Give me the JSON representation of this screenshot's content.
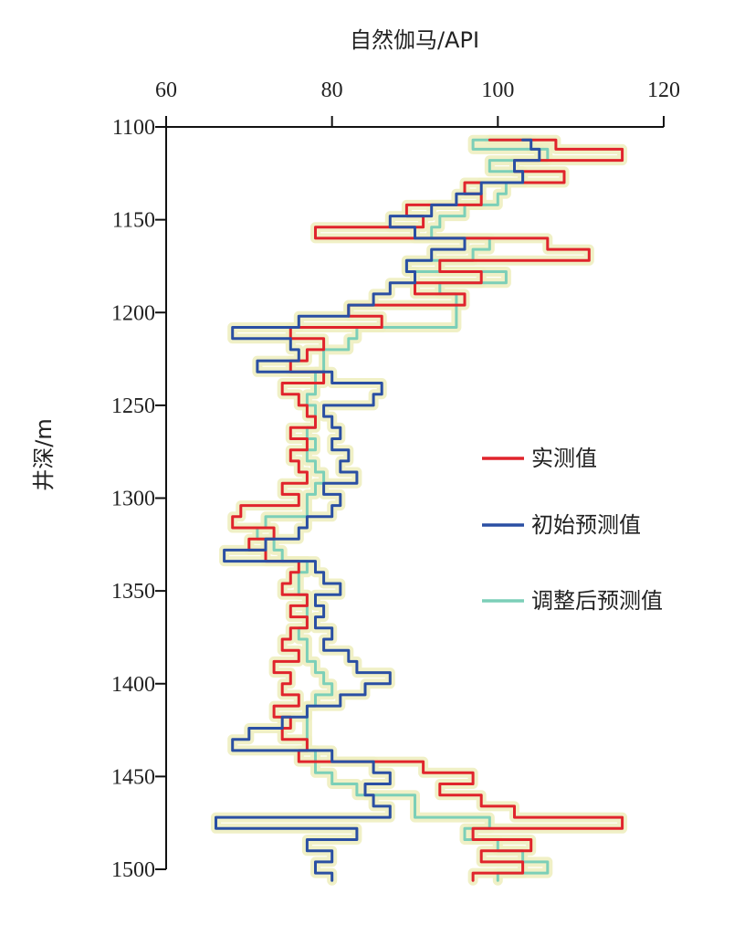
{
  "chart_data": {
    "type": "line",
    "orientation": "vertical-depth",
    "xlabel": "自然伽马/API",
    "ylabel": "井深/m",
    "xlim": [
      60,
      120
    ],
    "ylim": [
      1100,
      1500
    ],
    "x_axis_position": "top",
    "y_inverted": true,
    "grid": false,
    "legend_position": "right-middle",
    "x_ticks": [
      "60",
      "80",
      "100",
      "120"
    ],
    "y_ticks": [
      "1100",
      "1150",
      "1200",
      "1250",
      "1300",
      "1350",
      "1400",
      "1450",
      "1500"
    ],
    "colors": {
      "实测值": "#e0242c",
      "初始预测值": "#2a4fa3",
      "调整后预测值": "#7ccfb8",
      "halo": "#eeeec0"
    },
    "series": [
      {
        "name": "实测值",
        "depth": [
          1107,
          1112,
          1118,
          1124,
          1130,
          1136,
          1142,
          1148,
          1154,
          1160,
          1166,
          1172,
          1178,
          1184,
          1190,
          1196,
          1202,
          1208,
          1214,
          1220,
          1226,
          1232,
          1238,
          1244,
          1250,
          1256,
          1262,
          1268,
          1274,
          1280,
          1286,
          1292,
          1298,
          1304,
          1310,
          1316,
          1322,
          1328,
          1334,
          1340,
          1346,
          1352,
          1358,
          1364,
          1370,
          1376,
          1382,
          1388,
          1394,
          1400,
          1406,
          1412,
          1418,
          1424,
          1430,
          1436,
          1442,
          1448,
          1454,
          1460,
          1466,
          1472,
          1478,
          1484,
          1490,
          1496,
          1502,
          1506
        ],
        "values": [
          99,
          107,
          115,
          102,
          108,
          96,
          98,
          89,
          91,
          78,
          106,
          111,
          93,
          98,
          90,
          96,
          82,
          86,
          75,
          79,
          77,
          75,
          79,
          74,
          76,
          77,
          78,
          75,
          77,
          75,
          76,
          77,
          74,
          76,
          69,
          68,
          73,
          70,
          72,
          76,
          75,
          74,
          77,
          75,
          77,
          75,
          74,
          76,
          73,
          75,
          74,
          76,
          73,
          75,
          74,
          77,
          76,
          91,
          97,
          93,
          98,
          102,
          115,
          97,
          104,
          98,
          103,
          97
        ]
      },
      {
        "name": "初始预测值",
        "depth": [
          1107,
          1112,
          1118,
          1124,
          1130,
          1136,
          1142,
          1148,
          1154,
          1160,
          1166,
          1172,
          1178,
          1184,
          1190,
          1196,
          1202,
          1208,
          1214,
          1220,
          1226,
          1232,
          1238,
          1244,
          1250,
          1256,
          1262,
          1268,
          1274,
          1280,
          1286,
          1292,
          1298,
          1304,
          1310,
          1316,
          1322,
          1328,
          1334,
          1340,
          1346,
          1352,
          1358,
          1364,
          1370,
          1376,
          1382,
          1388,
          1394,
          1400,
          1406,
          1412,
          1418,
          1424,
          1430,
          1436,
          1442,
          1448,
          1454,
          1460,
          1466,
          1472,
          1478,
          1484,
          1490,
          1496,
          1502,
          1506
        ],
        "values": [
          103,
          104,
          105,
          102,
          103,
          98,
          95,
          92,
          87,
          90,
          96,
          92,
          89,
          90,
          87,
          85,
          82,
          76,
          68,
          75,
          76,
          71,
          80,
          86,
          85,
          79,
          80,
          81,
          80,
          82,
          81,
          83,
          79,
          81,
          80,
          77,
          76,
          72,
          67,
          78,
          79,
          81,
          78,
          79,
          78,
          80,
          79,
          82,
          83,
          87,
          84,
          81,
          77,
          74,
          70,
          68,
          80,
          85,
          87,
          84,
          85,
          87,
          66,
          83,
          77,
          80,
          78,
          80
        ]
      },
      {
        "name": "调整后预测值",
        "depth": [
          1107,
          1112,
          1118,
          1124,
          1130,
          1136,
          1142,
          1148,
          1154,
          1160,
          1166,
          1172,
          1178,
          1184,
          1190,
          1196,
          1202,
          1208,
          1214,
          1220,
          1226,
          1232,
          1238,
          1244,
          1250,
          1256,
          1262,
          1268,
          1274,
          1280,
          1286,
          1292,
          1298,
          1304,
          1310,
          1316,
          1322,
          1328,
          1334,
          1340,
          1346,
          1352,
          1358,
          1364,
          1370,
          1376,
          1382,
          1388,
          1394,
          1400,
          1406,
          1412,
          1418,
          1424,
          1430,
          1436,
          1442,
          1448,
          1454,
          1460,
          1466,
          1472,
          1478,
          1484,
          1490,
          1496,
          1502,
          1506
        ],
        "values": [
          104,
          97,
          106,
          99,
          103,
          101,
          100,
          96,
          93,
          92,
          99,
          97,
          89,
          101,
          93,
          95,
          95,
          95,
          83,
          82,
          79,
          79,
          78,
          78,
          77,
          78,
          78,
          77,
          78,
          77,
          78,
          79,
          78,
          77,
          77,
          72,
          71,
          73,
          74,
          77,
          76,
          76,
          77,
          77,
          77,
          76,
          77,
          77,
          78,
          79,
          80,
          78,
          77,
          77,
          77,
          77,
          78,
          78,
          80,
          83,
          90,
          90,
          99,
          96,
          100,
          103,
          106,
          100
        ]
      }
    ]
  }
}
